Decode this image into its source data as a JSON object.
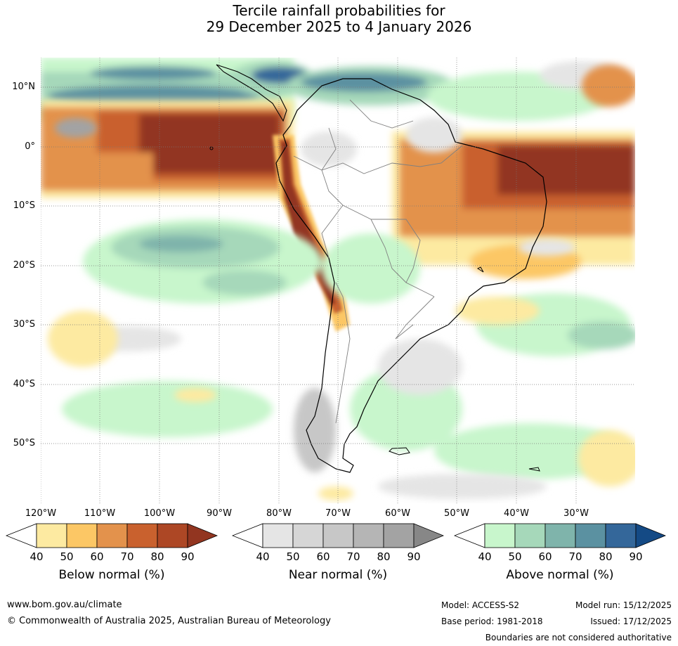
{
  "title": {
    "line1": "Tercile rainfall probabilities for",
    "line2": "29 December 2025 to 4 January 2026"
  },
  "map": {
    "lat_labels": [
      "10°N",
      "0°",
      "10°S",
      "20°S",
      "30°S",
      "40°S",
      "50°S"
    ],
    "lon_labels": [
      "120°W",
      "110°W",
      "100°W",
      "90°W",
      "80°W",
      "70°W",
      "60°W",
      "50°W",
      "40°W",
      "30°W"
    ]
  },
  "legend": {
    "below": {
      "title": "Below normal (%)",
      "ticks": [
        "40",
        "50",
        "60",
        "70",
        "80",
        "90"
      ],
      "colors": [
        "#ffffff",
        "#fdeaa1",
        "#fcc765",
        "#e3924c",
        "#c9612e",
        "#ad4725",
        "#923520"
      ]
    },
    "near": {
      "title": "Near normal (%)",
      "ticks": [
        "40",
        "50",
        "60",
        "70",
        "80",
        "90"
      ],
      "colors": [
        "#ffffff",
        "#e5e5e5",
        "#d6d6d6",
        "#c7c7c7",
        "#b5b5b5",
        "#a3a3a3",
        "#878787"
      ]
    },
    "above": {
      "title": "Above normal (%)",
      "ticks": [
        "40",
        "50",
        "60",
        "70",
        "80",
        "90"
      ],
      "colors": [
        "#ffffff",
        "#c8f6cc",
        "#a6d8ba",
        "#7fb4ab",
        "#5b91a1",
        "#34679a",
        "#144a85"
      ]
    }
  },
  "footer": {
    "website": "www.bom.gov.au/climate",
    "copyright": "© Commonwealth of Australia 2025, Australian Bureau of Meteorology",
    "model": "Model: ACCESS-S2",
    "base_period": "Base period: 1981-2018",
    "model_run": "Model run: 15/12/2025",
    "issued": "Issued: 17/12/2025",
    "boundaries_note": "Boundaries are not considered authoritative"
  }
}
